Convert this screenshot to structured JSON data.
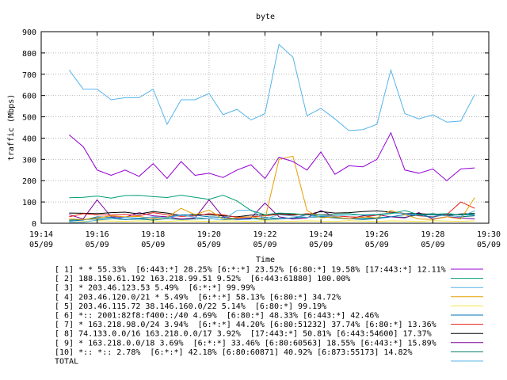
{
  "chart_data": {
    "type": "line",
    "title": "byte",
    "xlabel": "Time",
    "ylabel": "traffic (Mbps)",
    "ylim": [
      0,
      900
    ],
    "yticks": [
      0,
      100,
      200,
      300,
      400,
      500,
      600,
      700,
      800,
      900
    ],
    "xlim": [
      "19:14",
      "19:30"
    ],
    "xtick_labels": [
      {
        "t": "19:14",
        "d": "05/09"
      },
      {
        "t": "19:16",
        "d": "05/09"
      },
      {
        "t": "19:18",
        "d": "05/09"
      },
      {
        "t": "19:20",
        "d": "05/09"
      },
      {
        "t": "19:22",
        "d": "05/09"
      },
      {
        "t": "19:24",
        "d": "05/09"
      },
      {
        "t": "19:26",
        "d": "05/09"
      },
      {
        "t": "19:28",
        "d": "05/09"
      },
      {
        "t": "19:30",
        "d": "05/09"
      }
    ],
    "x": [
      "19:15:00",
      "19:15:30",
      "19:16:00",
      "19:16:30",
      "19:17:00",
      "19:17:30",
      "19:18:00",
      "19:18:30",
      "19:19:00",
      "19:19:30",
      "19:20:00",
      "19:20:30",
      "19:21:00",
      "19:21:30",
      "19:22:00",
      "19:22:30",
      "19:23:00",
      "19:23:30",
      "19:24:00",
      "19:24:30",
      "19:25:00",
      "19:25:30",
      "19:26:00",
      "19:26:30",
      "19:27:00",
      "19:27:30",
      "19:28:00",
      "19:28:30",
      "19:29:00",
      "19:29:30"
    ],
    "legend_position": "bottom",
    "series": [
      {
        "name": "[ 1] * * 55.33%  [6:443:*] 28.25% [6:*:*] 23.52% [6:80:*] 19.58% [17:443:*] 12.11%",
        "color": "#9400d3",
        "values": [
          415,
          360,
          250,
          225,
          250,
          220,
          280,
          210,
          290,
          225,
          235,
          215,
          250,
          275,
          210,
          310,
          290,
          250,
          335,
          230,
          270,
          265,
          300,
          425,
          250,
          235,
          255,
          200,
          255,
          260
        ]
      },
      {
        "name": "[ 2] 188.150.61.192 163.218.99.51 9.52%  [6:443:61880] 100.00%",
        "color": "#009e73",
        "values": [
          120,
          122,
          128,
          118,
          130,
          131,
          125,
          121,
          132,
          122,
          112,
          132,
          105,
          60,
          40,
          48,
          45,
          40,
          40,
          42,
          45,
          38,
          40,
          45,
          60,
          40,
          42,
          45,
          40,
          44
        ]
      },
      {
        "name": "[ 3] * 203.46.123.53 5.49%  [6:*:*] 99.99%",
        "color": "#56b4e9",
        "values": [
          5,
          5,
          15,
          20,
          28,
          24,
          30,
          25,
          38,
          28,
          22,
          18,
          60,
          62,
          20,
          40,
          34,
          28,
          35,
          34,
          38,
          40,
          42,
          48,
          45,
          40,
          38,
          35,
          32,
          58
        ]
      },
      {
        "name": "[ 4] 203.46.120.0/21 * 5.49%  [6:*:*] 58.13% [6:80:*] 34.72%",
        "color": "#e69f00",
        "values": [
          20,
          18,
          25,
          35,
          30,
          32,
          22,
          28,
          70,
          40,
          62,
          20,
          25,
          30,
          20,
          300,
          315,
          60,
          25,
          30,
          20,
          30,
          25,
          60,
          40,
          20,
          18,
          30,
          20,
          120
        ]
      },
      {
        "name": "[ 5] 203.46.115.72 38.146.160.0/22 5.14%  [6:80:*] 99.19%",
        "color": "#f0e442",
        "values": [
          5,
          8,
          12,
          10,
          9,
          11,
          10,
          8,
          12,
          10,
          9,
          11,
          10,
          8,
          12,
          10,
          9,
          11,
          10,
          8,
          12,
          10,
          9,
          11,
          10,
          8,
          12,
          10,
          9,
          11
        ]
      },
      {
        "name": "[ 6] *:: 2001:82f8:f400::/40 4.69%  [6:80:*] 48.33% [6:443:*] 42.46%",
        "color": "#0072b2",
        "values": [
          10,
          15,
          30,
          28,
          18,
          22,
          25,
          28,
          40,
          38,
          30,
          28,
          18,
          20,
          28,
          22,
          25,
          40,
          32,
          28,
          22,
          18,
          22,
          30,
          40,
          38,
          28,
          45,
          40,
          38
        ]
      },
      {
        "name": "[ 7] * 163.218.98.0/24 3.94%  [6:*:*] 44.20% [6:80:51232] 37.74% [6:80:*] 13.36%",
        "color": "#e51e10",
        "values": [
          30,
          45,
          40,
          38,
          42,
          35,
          50,
          40,
          32,
          35,
          45,
          40,
          28,
          30,
          35,
          42,
          38,
          45,
          40,
          35,
          30,
          28,
          38,
          50,
          45,
          35,
          30,
          40,
          100,
          70
        ]
      },
      {
        "name": "[ 8] 74.133.0.0/16 163.218.0.0/17 3.92%  [17:443:*] 50.81% [6:443:54600] 17.37%",
        "color": "#000000",
        "values": [
          48,
          47,
          45,
          50,
          52,
          44,
          55,
          48,
          36,
          42,
          40,
          35,
          30,
          38,
          40,
          45,
          42,
          40,
          55,
          48,
          50,
          55,
          58,
          52,
          46,
          45,
          42,
          38,
          44,
          46
        ]
      },
      {
        "name": "[ 9] * 163.218.0.0/18 3.69%  [6:*:*] 33.46% [6:80:60563] 18.55% [6:443:*] 15.89%",
        "color": "#7b0099",
        "values": [
          40,
          20,
          110,
          30,
          28,
          50,
          35,
          30,
          20,
          25,
          110,
          30,
          20,
          25,
          95,
          30,
          20,
          25,
          60,
          30,
          20,
          35,
          40,
          30,
          25,
          50,
          20,
          30,
          25,
          20
        ]
      },
      {
        "name": "[10] *:: *:: 2.78%  [6:*:*] 42.18% [6:80:60871] 40.92% [6:873:55173] 14.82%",
        "color": "#00796b",
        "values": [
          15,
          18,
          20,
          22,
          18,
          20,
          15,
          22,
          18,
          20,
          22,
          18,
          20,
          22,
          18,
          20,
          25,
          28,
          30,
          25,
          20,
          22,
          25,
          30,
          28,
          40,
          45,
          38,
          30,
          35
        ]
      },
      {
        "name": "TOTAL",
        "color": "#56b4e9",
        "values": [
          720,
          630,
          630,
          580,
          590,
          590,
          630,
          465,
          580,
          580,
          610,
          510,
          535,
          485,
          515,
          840,
          780,
          505,
          540,
          490,
          435,
          440,
          465,
          720,
          515,
          490,
          510,
          475,
          480,
          605
        ]
      }
    ]
  }
}
